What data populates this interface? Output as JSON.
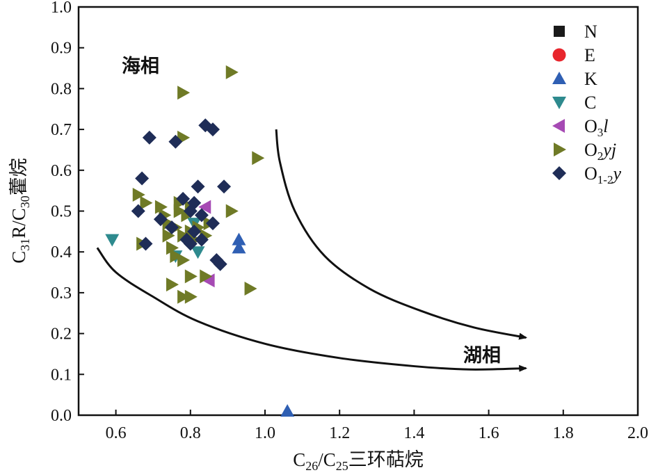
{
  "chart_data": {
    "type": "scatter",
    "xlabel": "C26/C25三环萜烷",
    "ylabel": "C31R/C30藿烷",
    "xlim": [
      0.5,
      2.0
    ],
    "ylim": [
      0.0,
      1.0
    ],
    "xticks": [
      "0.6",
      "0.8",
      "1.0",
      "1.2",
      "1.4",
      "1.6",
      "1.8",
      "2.0"
    ],
    "yticks": [
      "0.0",
      "0.1",
      "0.2",
      "0.3",
      "0.4",
      "0.5",
      "0.6",
      "0.7",
      "0.8",
      "0.9",
      "1.0"
    ],
    "legend_position": "top-right",
    "annotations": {
      "marine": "海相",
      "lacustrine": "湖相"
    },
    "series": [
      {
        "name": "N",
        "marker": "square",
        "color": "#1a1a1a",
        "points": []
      },
      {
        "name": "E",
        "marker": "circle",
        "color": "#e8262d",
        "points": []
      },
      {
        "name": "K",
        "marker": "triangle-up",
        "color": "#2f5fb3",
        "points": [
          [
            0.93,
            0.43
          ],
          [
            0.93,
            0.41
          ],
          [
            1.06,
            0.01
          ]
        ]
      },
      {
        "name": "C",
        "marker": "triangle-down",
        "color": "#2e8a8e",
        "points": [
          [
            0.59,
            0.43
          ],
          [
            0.76,
            0.39
          ],
          [
            0.81,
            0.47
          ],
          [
            0.82,
            0.4
          ]
        ]
      },
      {
        "name": "O3l",
        "marker": "triangle-left",
        "color": "#a64ab4",
        "points": [
          [
            0.84,
            0.51
          ],
          [
            0.85,
            0.33
          ]
        ]
      },
      {
        "name": "O2yj",
        "marker": "triangle-right",
        "color": "#6f7a26",
        "points": [
          [
            0.67,
            0.42
          ],
          [
            0.66,
            0.54
          ],
          [
            0.68,
            0.52
          ],
          [
            0.72,
            0.51
          ],
          [
            0.73,
            0.49
          ],
          [
            0.74,
            0.47
          ],
          [
            0.74,
            0.44
          ],
          [
            0.75,
            0.41
          ],
          [
            0.75,
            0.32
          ],
          [
            0.76,
            0.39
          ],
          [
            0.76,
            0.46
          ],
          [
            0.77,
            0.5
          ],
          [
            0.77,
            0.52
          ],
          [
            0.78,
            0.44
          ],
          [
            0.78,
            0.38
          ],
          [
            0.78,
            0.29
          ],
          [
            0.79,
            0.49
          ],
          [
            0.8,
            0.51
          ],
          [
            0.8,
            0.45
          ],
          [
            0.8,
            0.34
          ],
          [
            0.8,
            0.29
          ],
          [
            0.81,
            0.43
          ],
          [
            0.82,
            0.46
          ],
          [
            0.84,
            0.44
          ],
          [
            0.84,
            0.34
          ],
          [
            0.85,
            0.47
          ],
          [
            0.78,
            0.79
          ],
          [
            0.78,
            0.68
          ],
          [
            0.91,
            0.5
          ],
          [
            0.91,
            0.84
          ],
          [
            0.96,
            0.31
          ],
          [
            0.98,
            0.63
          ]
        ]
      },
      {
        "name": "O1-2y",
        "marker": "diamond",
        "color": "#1f2d57",
        "points": [
          [
            0.66,
            0.5
          ],
          [
            0.67,
            0.58
          ],
          [
            0.69,
            0.68
          ],
          [
            0.68,
            0.42
          ],
          [
            0.72,
            0.48
          ],
          [
            0.75,
            0.46
          ],
          [
            0.76,
            0.67
          ],
          [
            0.78,
            0.53
          ],
          [
            0.79,
            0.43
          ],
          [
            0.8,
            0.5
          ],
          [
            0.81,
            0.52
          ],
          [
            0.81,
            0.45
          ],
          [
            0.82,
            0.56
          ],
          [
            0.83,
            0.43
          ],
          [
            0.83,
            0.49
          ],
          [
            0.84,
            0.71
          ],
          [
            0.86,
            0.7
          ],
          [
            0.86,
            0.47
          ],
          [
            0.87,
            0.38
          ],
          [
            0.88,
            0.37
          ],
          [
            0.89,
            0.56
          ],
          [
            0.8,
            0.42
          ]
        ]
      }
    ],
    "curves": [
      {
        "name": "marine-to-lacustrine-upper",
        "arrow": true,
        "points": [
          [
            1.03,
            0.7
          ],
          [
            1.04,
            0.62
          ],
          [
            1.08,
            0.5
          ],
          [
            1.16,
            0.39
          ],
          [
            1.28,
            0.31
          ],
          [
            1.42,
            0.255
          ],
          [
            1.56,
            0.215
          ],
          [
            1.7,
            0.19
          ]
        ]
      },
      {
        "name": "marine-to-lacustrine-lower",
        "arrow": true,
        "points": [
          [
            0.55,
            0.41
          ],
          [
            0.6,
            0.35
          ],
          [
            0.7,
            0.29
          ],
          [
            0.82,
            0.23
          ],
          [
            1.0,
            0.175
          ],
          [
            1.2,
            0.14
          ],
          [
            1.4,
            0.12
          ],
          [
            1.55,
            0.112
          ],
          [
            1.7,
            0.115
          ]
        ]
      }
    ]
  }
}
